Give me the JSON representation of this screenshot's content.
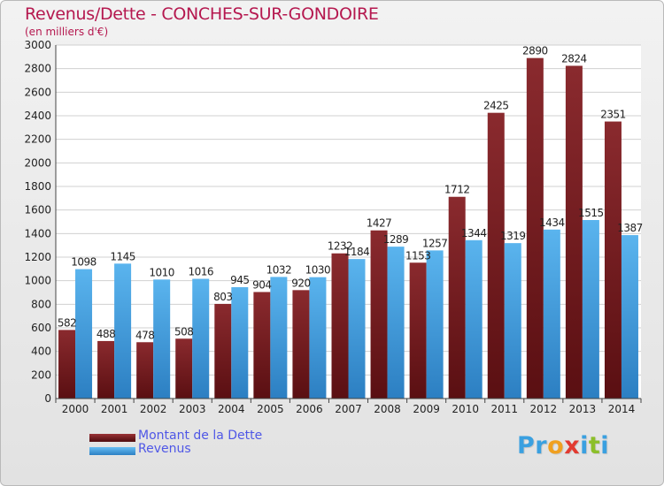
{
  "chart_data": {
    "type": "bar",
    "title": "Revenus/Dette - CONCHES-SUR-GONDOIRE",
    "subtitle": "(en milliers d'€)",
    "categories": [
      "2000",
      "2001",
      "2002",
      "2003",
      "2004",
      "2005",
      "2006",
      "2007",
      "2008",
      "2009",
      "2010",
      "2011",
      "2012",
      "2013",
      "2014"
    ],
    "series": [
      {
        "name": "Montant de la Dette",
        "color": "#7f1c1f",
        "values": [
          582,
          488,
          478,
          508,
          803,
          904,
          920,
          1232,
          1427,
          1153,
          1712,
          2425,
          2890,
          2824,
          2351
        ],
        "labels": [
          "582",
          "488",
          "478",
          "508",
          "803",
          "904",
          "920",
          "1232",
          "1427",
          "1153",
          "1712",
          "2425",
          "2890",
          "2824",
          "2351"
        ]
      },
      {
        "name": "Revenus",
        "color": "#3f9edd",
        "values": [
          1098,
          1145,
          1010,
          1016,
          945,
          1032,
          1030,
          1184,
          1289,
          1257,
          1344,
          1319,
          1434,
          1515,
          1387
        ],
        "labels": [
          "1098",
          "1145",
          "1010",
          "1016",
          "945",
          "1032",
          "1030",
          "1184",
          "1289",
          "1257",
          "1344",
          "1319",
          "1434",
          "1515",
          "1387"
        ]
      }
    ],
    "ylim": [
      0,
      3000
    ],
    "yticks": [
      0,
      200,
      400,
      600,
      800,
      1000,
      1200,
      1400,
      1600,
      1800,
      2000,
      2200,
      2400,
      2600,
      2800,
      3000
    ],
    "grid": true,
    "legend_position": "bottom-left"
  },
  "brand": {
    "letters": [
      {
        "ch": "P",
        "color": "#3aa0e0"
      },
      {
        "ch": "r",
        "color": "#3aa0e0"
      },
      {
        "ch": "o",
        "color": "#f0a020"
      },
      {
        "ch": "x",
        "color": "#e23a30"
      },
      {
        "ch": "i",
        "color": "#3aa0e0"
      },
      {
        "ch": "t",
        "color": "#8cbf2a"
      },
      {
        "ch": "i",
        "color": "#3aa0e0"
      }
    ]
  }
}
